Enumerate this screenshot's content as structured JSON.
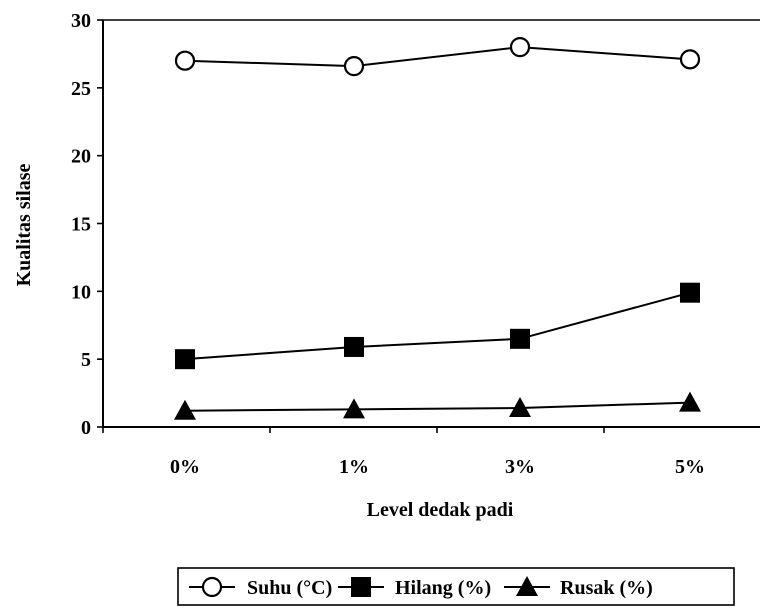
{
  "chart_data": {
    "type": "line",
    "xlabel": "Level dedak padi",
    "ylabel": "Kualitas silase",
    "categories": [
      "0%",
      "1%",
      "3%",
      "5%"
    ],
    "ylim": [
      0,
      30
    ],
    "yticks": [
      "0",
      "5",
      "10",
      "15",
      "20",
      "25",
      "30"
    ],
    "yticks_values": [
      0,
      5,
      10,
      15,
      20,
      25,
      30
    ],
    "grid": false,
    "legend_position": "bottom",
    "series": [
      {
        "name": "Suhu (°C)",
        "marker": "open-circle",
        "values": [
          27.0,
          26.6,
          28.0,
          27.1
        ]
      },
      {
        "name": "Hilang (%)",
        "marker": "filled-square",
        "values": [
          5.0,
          5.9,
          6.5,
          9.9
        ]
      },
      {
        "name": "Rusak (%)",
        "marker": "filled-triangle",
        "values": [
          1.2,
          1.3,
          1.4,
          1.8
        ]
      }
    ],
    "colors": {
      "line": "#000000",
      "background": "#ffffff"
    }
  }
}
